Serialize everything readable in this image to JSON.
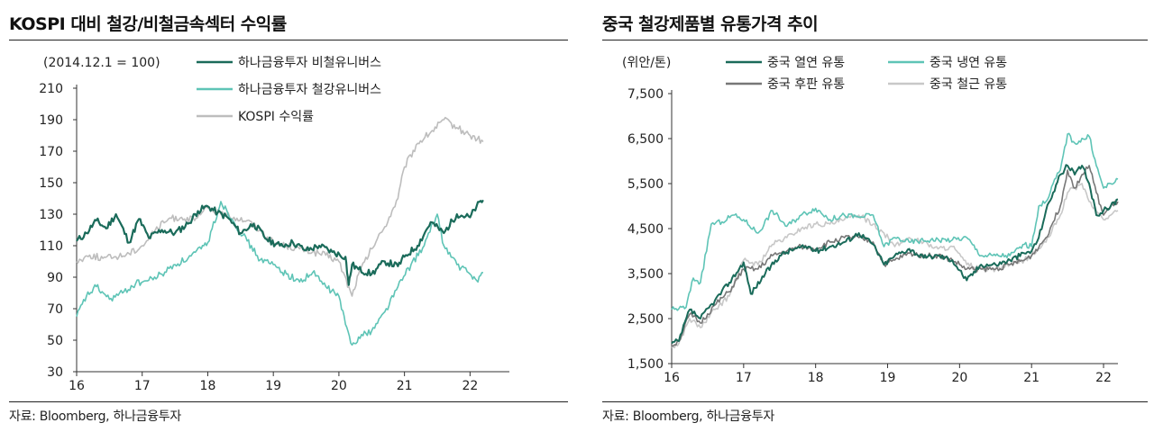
{
  "charts": [
    {
      "title": "KOSPI 대비 철강/비철금속섹터 수익률",
      "unit_note": "(2014.12.1 = 100)",
      "source": "자료: Bloomberg, 하나금융투자"
    },
    {
      "title": "중국 철강제품별 유통가격 추이",
      "unit_note": "(위안/톤)",
      "source": "자료: Bloomberg, 하나금융투자"
    }
  ],
  "chart_data": [
    {
      "type": "line",
      "title": "KOSPI 대비 철강/비철금속섹터 수익률",
      "ylabel": "(2014.12.1 = 100)",
      "ylim": [
        30,
        210
      ],
      "yticks": [
        30,
        50,
        70,
        90,
        110,
        130,
        150,
        170,
        190,
        210
      ],
      "xlim": [
        16,
        22.6
      ],
      "xticks": [
        16,
        17,
        18,
        19,
        20,
        21,
        22
      ],
      "legend": "top-center",
      "series": [
        {
          "name": "하나금융투자 비철유니버스",
          "color": "#1a6b5a",
          "width": 2.2,
          "x": [
            16.0,
            16.15,
            16.3,
            16.45,
            16.6,
            16.8,
            16.95,
            17.1,
            17.3,
            17.5,
            17.7,
            17.85,
            18.0,
            18.15,
            18.3,
            18.5,
            18.7,
            18.9,
            19.1,
            19.3,
            19.5,
            19.7,
            19.9,
            20.1,
            20.15,
            20.2,
            20.3,
            20.5,
            20.7,
            20.9,
            21.0,
            21.2,
            21.4,
            21.6,
            21.8,
            22.0,
            22.1,
            22.2
          ],
          "y": [
            113,
            118,
            126,
            121,
            130,
            112,
            127,
            115,
            120,
            118,
            124,
            132,
            135,
            131,
            128,
            118,
            124,
            114,
            110,
            112,
            107,
            110,
            106,
            103,
            85,
            98,
            95,
            92,
            100,
            97,
            103,
            110,
            125,
            118,
            130,
            128,
            135,
            139
          ]
        },
        {
          "name": "하나금융투자 철강유니버스",
          "color": "#5ec4b6",
          "width": 1.6,
          "x": [
            16.0,
            16.15,
            16.3,
            16.5,
            16.7,
            16.9,
            17.1,
            17.3,
            17.5,
            17.7,
            17.9,
            18.0,
            18.2,
            18.4,
            18.6,
            18.8,
            19.0,
            19.2,
            19.4,
            19.6,
            19.8,
            20.0,
            20.1,
            20.2,
            20.3,
            20.5,
            20.7,
            20.9,
            21.1,
            21.3,
            21.5,
            21.6,
            21.8,
            22.0,
            22.1,
            22.2
          ],
          "y": [
            65,
            78,
            84,
            76,
            80,
            86,
            88,
            92,
            98,
            102,
            108,
            112,
            138,
            125,
            113,
            101,
            98,
            92,
            87,
            93,
            84,
            78,
            60,
            47,
            52,
            56,
            68,
            84,
            98,
            110,
            130,
            110,
            98,
            92,
            88,
            93
          ]
        },
        {
          "name": "KOSPI 수익률",
          "color": "#bdbdbd",
          "width": 1.6,
          "x": [
            16.0,
            16.2,
            16.4,
            16.6,
            16.8,
            17.0,
            17.2,
            17.4,
            17.6,
            17.8,
            18.0,
            18.2,
            18.4,
            18.6,
            18.8,
            19.0,
            19.2,
            19.4,
            19.6,
            19.8,
            20.0,
            20.2,
            20.3,
            20.5,
            20.7,
            20.9,
            21.0,
            21.2,
            21.4,
            21.6,
            21.8,
            22.0,
            22.2
          ],
          "y": [
            100,
            104,
            102,
            103,
            105,
            110,
            120,
            127,
            128,
            126,
            134,
            130,
            128,
            126,
            120,
            112,
            110,
            108,
            106,
            104,
            100,
            78,
            92,
            108,
            122,
            140,
            160,
            175,
            182,
            190,
            185,
            180,
            176
          ]
        }
      ]
    },
    {
      "type": "line",
      "title": "중국 철강제품별 유통가격 추이",
      "ylabel": "(위안/톤)",
      "ylim": [
        1500,
        7500
      ],
      "yticks": [
        1500,
        2500,
        3500,
        4500,
        5500,
        6500,
        7500
      ],
      "ytick_labels": [
        "1,500",
        "2,500",
        "3,500",
        "4,500",
        "5,500",
        "6,500",
        "7,500"
      ],
      "xlim": [
        16,
        22.2
      ],
      "xticks": [
        16,
        17,
        18,
        19,
        20,
        21,
        22
      ],
      "legend": "top",
      "series": [
        {
          "name": "중국 열연 유통",
          "color": "#1a6b5a",
          "width": 2,
          "x": [
            16.0,
            16.1,
            16.25,
            16.4,
            16.6,
            16.8,
            17.0,
            17.1,
            17.3,
            17.5,
            17.7,
            17.9,
            18.0,
            18.2,
            18.4,
            18.6,
            18.8,
            18.95,
            19.1,
            19.3,
            19.5,
            19.7,
            19.9,
            20.1,
            20.3,
            20.5,
            20.7,
            20.9,
            21.0,
            21.1,
            21.2,
            21.3,
            21.4,
            21.5,
            21.6,
            21.7,
            21.8,
            21.9,
            22.0,
            22.1,
            22.2
          ],
          "y": [
            1950,
            2000,
            2700,
            2500,
            2900,
            3300,
            3750,
            3050,
            3500,
            3900,
            4050,
            4100,
            4000,
            4100,
            4200,
            4400,
            4150,
            3700,
            3900,
            4050,
            3850,
            3900,
            3800,
            3350,
            3700,
            3700,
            3800,
            3950,
            4000,
            4300,
            4900,
            5300,
            5700,
            5900,
            5700,
            5900,
            5500,
            4800,
            4900,
            5000,
            5150
          ]
        },
        {
          "name": "중국 냉연 유통",
          "color": "#5ec4b6",
          "width": 1.6,
          "x": [
            16.0,
            16.2,
            16.3,
            16.4,
            16.55,
            16.7,
            16.85,
            17.0,
            17.2,
            17.4,
            17.6,
            17.8,
            18.0,
            18.2,
            18.4,
            18.6,
            18.8,
            18.95,
            19.1,
            19.3,
            19.6,
            19.9,
            20.1,
            20.3,
            20.5,
            20.7,
            20.9,
            21.0,
            21.1,
            21.2,
            21.3,
            21.4,
            21.5,
            21.6,
            21.8,
            21.9,
            22.0,
            22.1,
            22.2
          ],
          "y": [
            2700,
            2750,
            3400,
            3300,
            4600,
            4650,
            4800,
            4700,
            4400,
            4900,
            4550,
            4800,
            4950,
            4700,
            4800,
            4750,
            4800,
            4100,
            4300,
            4200,
            4250,
            4250,
            4300,
            3900,
            3900,
            3900,
            4150,
            4100,
            5000,
            5100,
            5500,
            5800,
            6600,
            6400,
            6550,
            5900,
            5400,
            5500,
            5600
          ]
        },
        {
          "name": "중국 후판 유통",
          "color": "#777777",
          "width": 1.6,
          "x": [
            16.0,
            16.1,
            16.25,
            16.4,
            16.6,
            16.8,
            17.0,
            17.2,
            17.4,
            17.6,
            17.8,
            18.0,
            18.2,
            18.4,
            18.6,
            18.8,
            18.95,
            19.1,
            19.3,
            19.5,
            19.7,
            19.9,
            20.1,
            20.3,
            20.5,
            20.7,
            20.9,
            21.0,
            21.2,
            21.4,
            21.5,
            21.6,
            21.7,
            21.8,
            21.9,
            22.0,
            22.1,
            22.2
          ],
          "y": [
            1900,
            2000,
            2600,
            2400,
            2800,
            3100,
            3600,
            3600,
            3900,
            4000,
            4100,
            4050,
            4200,
            4300,
            4300,
            4200,
            3700,
            3800,
            3950,
            3900,
            3900,
            3800,
            3600,
            3600,
            3600,
            3700,
            3800,
            3900,
            4300,
            5000,
            5800,
            5400,
            5700,
            5900,
            5300,
            4800,
            5000,
            5100
          ]
        },
        {
          "name": "중국 철근 유통",
          "color": "#c8c8c8",
          "width": 1.6,
          "x": [
            16.0,
            16.1,
            16.25,
            16.4,
            16.6,
            16.8,
            17.0,
            17.2,
            17.4,
            17.6,
            17.8,
            18.0,
            18.2,
            18.4,
            18.6,
            18.8,
            18.95,
            19.1,
            19.3,
            19.5,
            19.7,
            19.9,
            20.1,
            20.3,
            20.5,
            20.7,
            20.9,
            21.0,
            21.2,
            21.4,
            21.5,
            21.6,
            21.7,
            21.8,
            21.9,
            22.0,
            22.1,
            22.2
          ],
          "y": [
            1850,
            1950,
            2500,
            2300,
            2700,
            3000,
            3800,
            3700,
            4150,
            4300,
            4500,
            4600,
            4600,
            4700,
            4800,
            4600,
            4400,
            4100,
            4300,
            4200,
            4050,
            4100,
            3700,
            3600,
            3600,
            3700,
            3800,
            3900,
            4200,
            4800,
            5300,
            5400,
            5500,
            5100,
            4900,
            4700,
            4800,
            4900
          ]
        }
      ]
    }
  ]
}
